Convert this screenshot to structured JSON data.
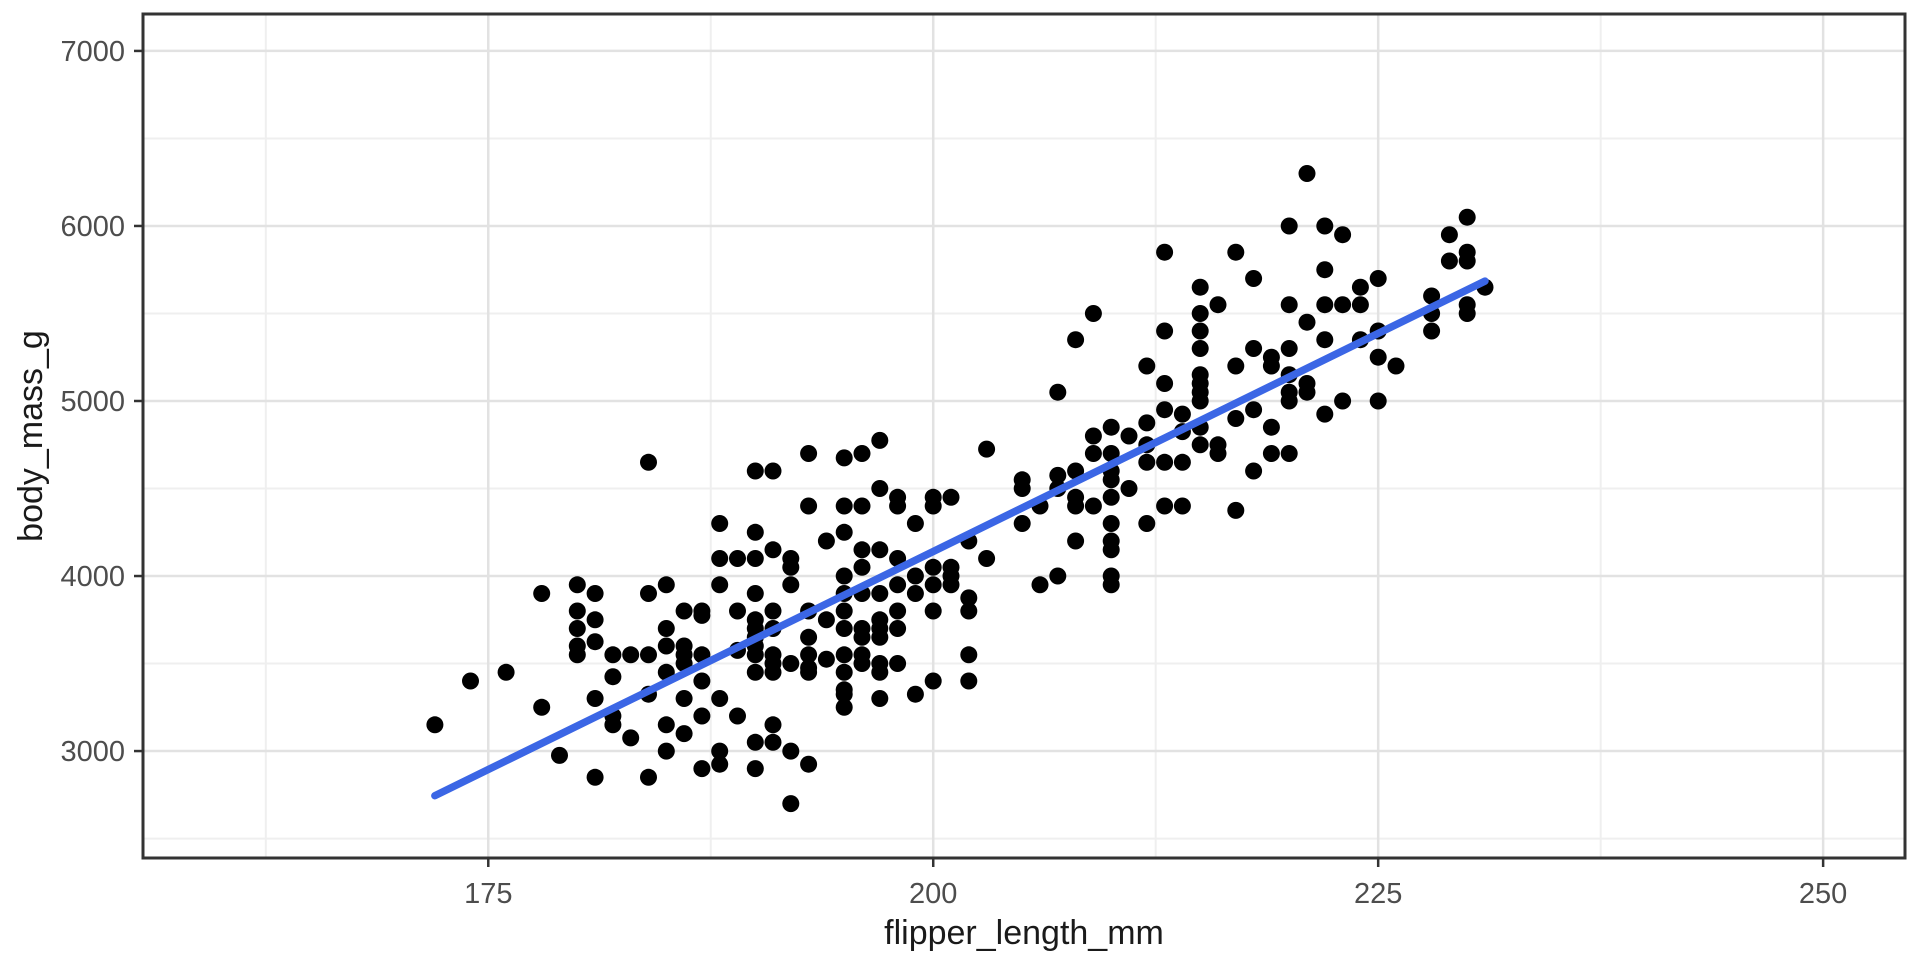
{
  "chart_data": {
    "type": "scatter",
    "title": "",
    "xlabel": "flipper_length_mm",
    "ylabel": "body_mass_g",
    "xlim": [
      155.6,
      254.6
    ],
    "ylim": [
      2389,
      7211
    ],
    "x_ticks": [
      175,
      200,
      225,
      250
    ],
    "y_ticks": [
      3000,
      4000,
      5000,
      6000,
      7000
    ],
    "x_minor_ticks": [
      162.5,
      187.5,
      212.5,
      237.5
    ],
    "y_minor_ticks": [
      2500,
      3500,
      4500,
      5500,
      6500
    ],
    "grid": true,
    "legend": "none",
    "point_style": {
      "color": "#000000",
      "radius": 8.5
    },
    "trend_line": {
      "type": "linear",
      "x1": 172,
      "y1": 2745,
      "x2": 231,
      "y2": 5685,
      "color": "#3B66E5",
      "width": 7.5
    },
    "points": [
      [
        172,
        3150
      ],
      [
        174,
        3400
      ],
      [
        176,
        3450
      ],
      [
        178,
        3250
      ],
      [
        178,
        3900
      ],
      [
        179,
        2975
      ],
      [
        180,
        3950
      ],
      [
        180,
        3800
      ],
      [
        180,
        3700
      ],
      [
        180,
        3600
      ],
      [
        180,
        3550
      ],
      [
        181,
        3900
      ],
      [
        181,
        3750
      ],
      [
        181,
        3625
      ],
      [
        181,
        3300
      ],
      [
        181,
        2850
      ],
      [
        182,
        3550
      ],
      [
        182,
        3425
      ],
      [
        182,
        3200
      ],
      [
        182,
        3150
      ],
      [
        183,
        3550
      ],
      [
        183,
        3075
      ],
      [
        184,
        4650
      ],
      [
        184,
        3900
      ],
      [
        184,
        3550
      ],
      [
        184,
        3325
      ],
      [
        184,
        2850
      ],
      [
        185,
        3950
      ],
      [
        185,
        3700
      ],
      [
        185,
        3600
      ],
      [
        185,
        3450
      ],
      [
        185,
        3150
      ],
      [
        185,
        3000
      ],
      [
        186,
        3800
      ],
      [
        186,
        3600
      ],
      [
        186,
        3550
      ],
      [
        186,
        3500
      ],
      [
        186,
        3300
      ],
      [
        186,
        3100
      ],
      [
        187,
        3800
      ],
      [
        187,
        3775
      ],
      [
        187,
        3550
      ],
      [
        187,
        3400
      ],
      [
        187,
        3200
      ],
      [
        187,
        2900
      ],
      [
        188,
        4300
      ],
      [
        188,
        4100
      ],
      [
        188,
        3950
      ],
      [
        188,
        3300
      ],
      [
        188,
        3000
      ],
      [
        188,
        2925
      ],
      [
        189,
        4100
      ],
      [
        189,
        3800
      ],
      [
        189,
        3575
      ],
      [
        189,
        3200
      ],
      [
        190,
        4600
      ],
      [
        190,
        4250
      ],
      [
        190,
        4100
      ],
      [
        190,
        3900
      ],
      [
        190,
        3750
      ],
      [
        190,
        3700
      ],
      [
        190,
        3650
      ],
      [
        190,
        3600
      ],
      [
        190,
        3550
      ],
      [
        190,
        3450
      ],
      [
        190,
        3050
      ],
      [
        190,
        2900
      ],
      [
        191,
        4600
      ],
      [
        191,
        4150
      ],
      [
        191,
        3800
      ],
      [
        191,
        3700
      ],
      [
        191,
        3550
      ],
      [
        191,
        3500
      ],
      [
        191,
        3450
      ],
      [
        191,
        3150
      ],
      [
        191,
        3050
      ],
      [
        192,
        4100
      ],
      [
        192,
        4050
      ],
      [
        192,
        3950
      ],
      [
        192,
        3500
      ],
      [
        192,
        3000
      ],
      [
        192,
        2700
      ],
      [
        193,
        4700
      ],
      [
        193,
        4400
      ],
      [
        193,
        3800
      ],
      [
        193,
        3650
      ],
      [
        193,
        3550
      ],
      [
        193,
        3475
      ],
      [
        193,
        3450
      ],
      [
        193,
        2925
      ],
      [
        194,
        4200
      ],
      [
        194,
        3750
      ],
      [
        194,
        3525
      ],
      [
        195,
        4675
      ],
      [
        195,
        4400
      ],
      [
        195,
        4250
      ],
      [
        195,
        4000
      ],
      [
        195,
        3900
      ],
      [
        195,
        3800
      ],
      [
        195,
        3700
      ],
      [
        195,
        3550
      ],
      [
        195,
        3450
      ],
      [
        195,
        3350
      ],
      [
        195,
        3325
      ],
      [
        195,
        3250
      ],
      [
        196,
        4700
      ],
      [
        196,
        4400
      ],
      [
        196,
        4150
      ],
      [
        196,
        4050
      ],
      [
        196,
        3900
      ],
      [
        196,
        3700
      ],
      [
        196,
        3650
      ],
      [
        196,
        3550
      ],
      [
        196,
        3500
      ],
      [
        197,
        4775
      ],
      [
        197,
        4500
      ],
      [
        197,
        4150
      ],
      [
        197,
        3900
      ],
      [
        197,
        3750
      ],
      [
        197,
        3700
      ],
      [
        197,
        3650
      ],
      [
        197,
        3500
      ],
      [
        197,
        3450
      ],
      [
        197,
        3300
      ],
      [
        198,
        4450
      ],
      [
        198,
        4400
      ],
      [
        198,
        4100
      ],
      [
        198,
        3950
      ],
      [
        198,
        3800
      ],
      [
        198,
        3700
      ],
      [
        198,
        3500
      ],
      [
        199,
        4300
      ],
      [
        199,
        4000
      ],
      [
        199,
        3900
      ],
      [
        199,
        3325
      ],
      [
        200,
        4450
      ],
      [
        200,
        4400
      ],
      [
        200,
        4050
      ],
      [
        200,
        3950
      ],
      [
        200,
        3800
      ],
      [
        200,
        3400
      ],
      [
        201,
        4450
      ],
      [
        201,
        4050
      ],
      [
        201,
        4000
      ],
      [
        201,
        3950
      ],
      [
        202,
        4200
      ],
      [
        202,
        3875
      ],
      [
        202,
        3800
      ],
      [
        202,
        3550
      ],
      [
        202,
        3400
      ],
      [
        203,
        4725
      ],
      [
        203,
        4100
      ],
      [
        205,
        4550
      ],
      [
        205,
        4500
      ],
      [
        205,
        4300
      ],
      [
        206,
        4400
      ],
      [
        206,
        3950
      ],
      [
        207,
        5050
      ],
      [
        207,
        4575
      ],
      [
        207,
        4500
      ],
      [
        207,
        4000
      ],
      [
        208,
        5350
      ],
      [
        208,
        4600
      ],
      [
        208,
        4450
      ],
      [
        208,
        4400
      ],
      [
        208,
        4200
      ],
      [
        209,
        5500
      ],
      [
        209,
        4800
      ],
      [
        209,
        4700
      ],
      [
        209,
        4400
      ],
      [
        210,
        4850
      ],
      [
        210,
        4700
      ],
      [
        210,
        4600
      ],
      [
        210,
        4550
      ],
      [
        210,
        4450
      ],
      [
        210,
        4300
      ],
      [
        210,
        4200
      ],
      [
        210,
        4150
      ],
      [
        210,
        4000
      ],
      [
        210,
        3950
      ],
      [
        211,
        4800
      ],
      [
        211,
        4500
      ],
      [
        212,
        5200
      ],
      [
        212,
        4875
      ],
      [
        212,
        4750
      ],
      [
        212,
        4650
      ],
      [
        212,
        4300
      ],
      [
        213,
        5850
      ],
      [
        213,
        5400
      ],
      [
        213,
        5100
      ],
      [
        213,
        4950
      ],
      [
        213,
        4650
      ],
      [
        213,
        4400
      ],
      [
        214,
        4925
      ],
      [
        214,
        4825
      ],
      [
        214,
        4650
      ],
      [
        214,
        4400
      ],
      [
        215,
        5650
      ],
      [
        215,
        5500
      ],
      [
        215,
        5400
      ],
      [
        215,
        5300
      ],
      [
        215,
        5150
      ],
      [
        215,
        5100
      ],
      [
        215,
        5050
      ],
      [
        215,
        5000
      ],
      [
        215,
        4850
      ],
      [
        215,
        4750
      ],
      [
        216,
        5550
      ],
      [
        216,
        4750
      ],
      [
        216,
        4700
      ],
      [
        217,
        5850
      ],
      [
        217,
        5200
      ],
      [
        217,
        4900
      ],
      [
        217,
        4375
      ],
      [
        218,
        5700
      ],
      [
        218,
        5300
      ],
      [
        218,
        4950
      ],
      [
        218,
        4600
      ],
      [
        219,
        5250
      ],
      [
        219,
        5200
      ],
      [
        219,
        4850
      ],
      [
        219,
        4700
      ],
      [
        220,
        6000
      ],
      [
        220,
        5550
      ],
      [
        220,
        5300
      ],
      [
        220,
        5150
      ],
      [
        220,
        5050
      ],
      [
        220,
        5000
      ],
      [
        220,
        4700
      ],
      [
        221,
        6300
      ],
      [
        221,
        5450
      ],
      [
        221,
        5100
      ],
      [
        221,
        5050
      ],
      [
        222,
        6000
      ],
      [
        222,
        5750
      ],
      [
        222,
        5550
      ],
      [
        222,
        5350
      ],
      [
        222,
        4925
      ],
      [
        223,
        5950
      ],
      [
        223,
        5550
      ],
      [
        223,
        5000
      ],
      [
        224,
        5650
      ],
      [
        224,
        5550
      ],
      [
        224,
        5350
      ],
      [
        225,
        5700
      ],
      [
        225,
        5400
      ],
      [
        225,
        5250
      ],
      [
        225,
        5000
      ],
      [
        226,
        5200
      ],
      [
        228,
        5600
      ],
      [
        228,
        5500
      ],
      [
        228,
        5400
      ],
      [
        229,
        5950
      ],
      [
        229,
        5800
      ],
      [
        230,
        6050
      ],
      [
        230,
        5850
      ],
      [
        230,
        5800
      ],
      [
        230,
        5550
      ],
      [
        230,
        5500
      ],
      [
        231,
        5650
      ]
    ]
  },
  "colors": {
    "background": "#FFFFFF",
    "panel_background": "#FFFFFF",
    "grid_major": "#E2E2E2",
    "grid_minor": "#EFEFEF",
    "panel_border": "#333333",
    "tick_mark": "#333333",
    "tick_label": "#4D4D4D",
    "axis_title": "#1A1A1A",
    "point": "#000000",
    "trend": "#3B66E5"
  }
}
